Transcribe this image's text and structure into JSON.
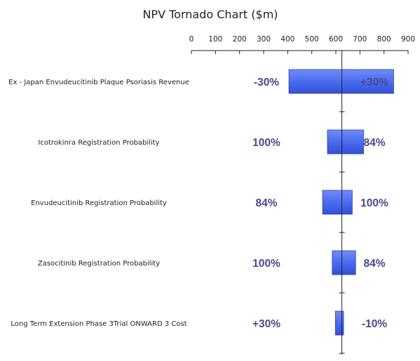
{
  "chart_data": {
    "type": "bar",
    "orientation": "horizontal",
    "variant": "tornado",
    "title": "NPV Tornado Chart ($m)",
    "xlim": [
      0,
      900
    ],
    "x_ticks": [
      "0",
      "100",
      "200",
      "300",
      "400",
      "500",
      "600",
      "700",
      "800",
      "900"
    ],
    "base_value": 625,
    "bar_color": "#4a6cf0",
    "label_color": "#4a4a8c",
    "categories": [
      "Ex - Japan Envudeucitinib Plaque Psoriasis Revenue",
      "Icotrokinra Registration Probability",
      "Envudeucitinib Registration Probability",
      "Zasocitinib Registration Probability",
      "Long Term Extension Phase 3Trial ONWARD 3 Cost"
    ],
    "bars": [
      {
        "low": 405,
        "high": 840,
        "left_label": "-30%",
        "right_label": "+30%"
      },
      {
        "low": 565,
        "high": 715,
        "left_label": "100%",
        "right_label": "84%"
      },
      {
        "low": 545,
        "high": 668,
        "left_label": "84%",
        "right_label": "100%"
      },
      {
        "low": 585,
        "high": 682,
        "left_label": "100%",
        "right_label": "84%"
      },
      {
        "low": 598,
        "high": 632,
        "left_label": "+30%",
        "right_label": "-10%"
      }
    ]
  }
}
